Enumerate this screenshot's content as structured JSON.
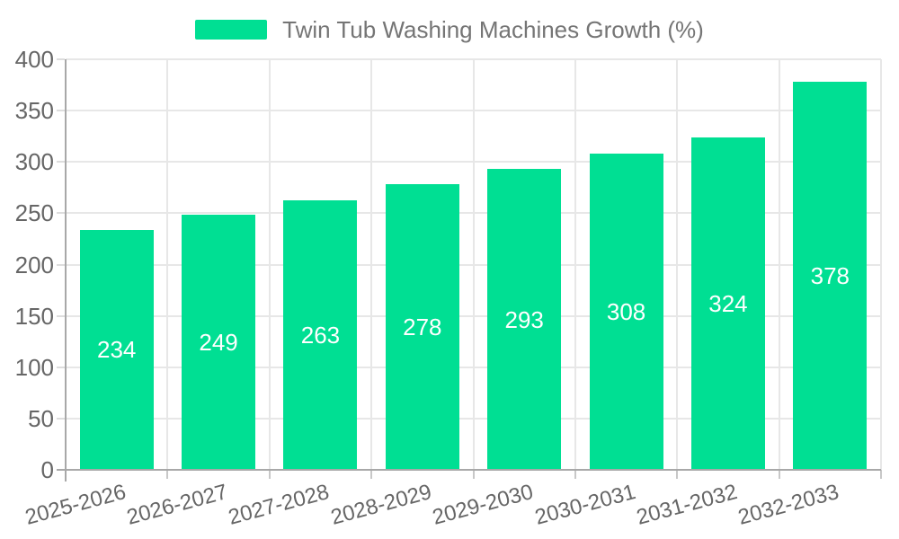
{
  "legend": {
    "label": "Twin Tub Washing Machines Growth (%)"
  },
  "chart_data": {
    "type": "bar",
    "title": "Twin Tub Washing Machines Growth (%)",
    "categories": [
      "2025-2026",
      "2026-2027",
      "2027-2028",
      "2028-2029",
      "2029-2030",
      "2030-2031",
      "2031-2032",
      "2032-2033"
    ],
    "values": [
      234,
      249,
      263,
      278,
      293,
      308,
      324,
      378
    ],
    "xlabel": "",
    "ylabel": "",
    "ylim": [
      0,
      400
    ],
    "ytick_step": 50,
    "grid": true,
    "legend_position": "top",
    "data_labels": "centered-white"
  },
  "colors": {
    "bar": "#00df93",
    "legend_text": "#757575",
    "axis_label": "#666666",
    "axis_line": "#a8a8a8",
    "gridline": "#e7e7e7",
    "tick_x": "#c8c8c8",
    "tick_y": "#dddddd",
    "data_label": "#ffffff"
  }
}
